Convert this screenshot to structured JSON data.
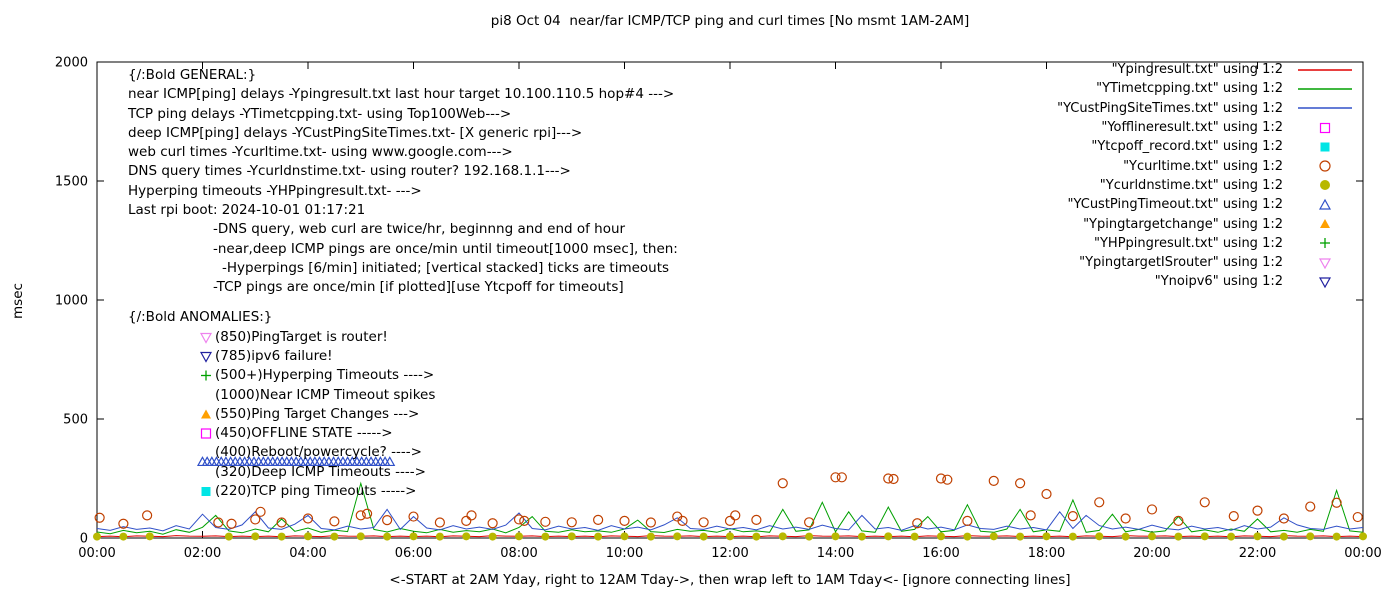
{
  "title": "pi8 Oct 04  near/far ICMP/TCP ping and curl times [No msmt 1AM-2AM]",
  "axes": {
    "ylabel": "msec",
    "xlabel": "<-START at 2AM Yday, right to 12AM Tday->, then wrap left to 1AM Tday<- [ignore connecting lines]",
    "y_ticks": [
      "0",
      "500",
      "1000",
      "1500",
      "2000"
    ],
    "x_ticks": [
      "00:00",
      "02:00",
      "04:00",
      "06:00",
      "08:00",
      "10:00",
      "12:00",
      "14:00",
      "16:00",
      "18:00",
      "20:00",
      "22:00",
      "00:00"
    ]
  },
  "chart_data": {
    "type": "line",
    "x_unit": "hours",
    "xlim": [
      0,
      24
    ],
    "ylim": [
      0,
      2000
    ],
    "x_tick_values": [
      0,
      2,
      4,
      6,
      8,
      10,
      12,
      14,
      16,
      18,
      20,
      22,
      24
    ],
    "y_tick_values": [
      0,
      500,
      1000,
      1500,
      2000
    ],
    "grid": false,
    "legend_position": "top-right-inside",
    "series": [
      {
        "name": "near-icmp-ping-delay",
        "file": "Ypingresult.txt",
        "type": "line",
        "color": "#e10000",
        "x_start": 0,
        "x_step": 0.25,
        "values": [
          6,
          8,
          5,
          9,
          7,
          6,
          10,
          8,
          7,
          9,
          6,
          8,
          6,
          8,
          5,
          9,
          7,
          6,
          10,
          8,
          7,
          9,
          6,
          8,
          6,
          8,
          5,
          9,
          7,
          6,
          10,
          8,
          7,
          9,
          6,
          8,
          6,
          8,
          5,
          9,
          7,
          6,
          10,
          8,
          7,
          9,
          6,
          8,
          6,
          8,
          5,
          9,
          7,
          6,
          10,
          8,
          7,
          9,
          6,
          8,
          6,
          8,
          5,
          9,
          7,
          6,
          10,
          8,
          7,
          9,
          6,
          8,
          6,
          8,
          5,
          9,
          7,
          6,
          10,
          8,
          7,
          9,
          6,
          8,
          6,
          8,
          5,
          9,
          7,
          6,
          10,
          8,
          7,
          9,
          6,
          8,
          6
        ]
      },
      {
        "name": "tcp-ping-delay",
        "file": "YTimetcpping.txt",
        "type": "line",
        "color": "#00a000",
        "x_start": 0,
        "x_step": 0.25,
        "values": [
          25,
          18,
          32,
          22,
          28,
          16,
          35,
          24,
          45,
          95,
          30,
          22,
          38,
          26,
          80,
          28,
          42,
          24,
          33,
          27,
          230,
          36,
          25,
          40,
          28,
          22,
          36,
          24,
          31,
          26,
          38,
          22,
          44,
          90,
          28,
          24,
          35,
          26,
          30,
          24,
          38,
          75,
          27,
          23,
          36,
          28,
          32,
          24,
          40,
          26,
          30,
          24,
          120,
          28,
          34,
          150,
          26,
          110,
          30,
          24,
          130,
          28,
          36,
          90,
          26,
          32,
          140,
          28,
          24,
          38,
          120,
          26,
          34,
          28,
          160,
          24,
          32,
          100,
          26,
          36,
          24,
          30,
          90,
          26,
          34,
          24,
          38,
          28,
          80,
          26,
          32,
          24,
          36,
          28,
          200,
          30,
          24
        ]
      },
      {
        "name": "deep-icmp-ping-delay",
        "file": "YCustPingSiteTimes.txt",
        "type": "line",
        "color": "#3050c8",
        "x_start": 0,
        "x_step": 0.25,
        "values": [
          40,
          32,
          48,
          36,
          42,
          30,
          52,
          38,
          100,
          44,
          36,
          55,
          110,
          42,
          36,
          58,
          95,
          40,
          34,
          50,
          38,
          44,
          120,
          36,
          90,
          42,
          34,
          52,
          38,
          46,
          36,
          54,
          105,
          40,
          34,
          50,
          38,
          44,
          32,
          52,
          38,
          46,
          34,
          55,
          85,
          40,
          36,
          50,
          38,
          44,
          34,
          52,
          38,
          46,
          36,
          54,
          40,
          34,
          95,
          38,
          44,
          32,
          52,
          38,
          46,
          34,
          55,
          40,
          36,
          50,
          38,
          44,
          34,
          110,
          40,
          95,
          52,
          38,
          46,
          36,
          54,
          40,
          34,
          50,
          38,
          44,
          32,
          52,
          38,
          46,
          85,
          55,
          40,
          36,
          50,
          38,
          44
        ]
      },
      {
        "name": "web-curl-times",
        "file": "Ycurltime.txt",
        "type": "points",
        "marker": "circle-open",
        "color": "#c04000",
        "size": 4.5,
        "points": [
          [
            0.05,
            85
          ],
          [
            0.5,
            60
          ],
          [
            0.95,
            95
          ],
          [
            2.3,
            65
          ],
          [
            2.55,
            60
          ],
          [
            3.0,
            78
          ],
          [
            3.1,
            110
          ],
          [
            3.5,
            65
          ],
          [
            4.0,
            82
          ],
          [
            4.5,
            70
          ],
          [
            5.0,
            95
          ],
          [
            5.12,
            102
          ],
          [
            5.5,
            75
          ],
          [
            6.0,
            90
          ],
          [
            6.5,
            65
          ],
          [
            7.0,
            72
          ],
          [
            7.1,
            95
          ],
          [
            7.5,
            62
          ],
          [
            8.0,
            78
          ],
          [
            8.1,
            72
          ],
          [
            8.5,
            68
          ],
          [
            9.0,
            66
          ],
          [
            9.5,
            76
          ],
          [
            10.0,
            72
          ],
          [
            10.5,
            65
          ],
          [
            11.0,
            90
          ],
          [
            11.1,
            72
          ],
          [
            11.5,
            66
          ],
          [
            12.0,
            72
          ],
          [
            12.1,
            95
          ],
          [
            12.5,
            76
          ],
          [
            13.0,
            230
          ],
          [
            13.5,
            66
          ],
          [
            14.0,
            255
          ],
          [
            14.12,
            255
          ],
          [
            15.0,
            250
          ],
          [
            15.1,
            248
          ],
          [
            15.55,
            62
          ],
          [
            16.0,
            250
          ],
          [
            16.12,
            245
          ],
          [
            16.5,
            72
          ],
          [
            17.0,
            240
          ],
          [
            17.5,
            230
          ],
          [
            17.7,
            95
          ],
          [
            18.0,
            185
          ],
          [
            18.5,
            92
          ],
          [
            19.0,
            150
          ],
          [
            19.5,
            82
          ],
          [
            20.0,
            120
          ],
          [
            20.5,
            72
          ],
          [
            21.0,
            150
          ],
          [
            21.55,
            92
          ],
          [
            22.0,
            115
          ],
          [
            22.5,
            82
          ],
          [
            23.0,
            132
          ],
          [
            23.5,
            148
          ],
          [
            23.9,
            88
          ]
        ]
      },
      {
        "name": "dns-query-times",
        "file": "Ycurldnstime.txt",
        "type": "points",
        "marker": "circle-filled",
        "color": "#b8b800",
        "size": 4,
        "points": [
          [
            0,
            6
          ],
          [
            0.5,
            6
          ],
          [
            1,
            7
          ],
          [
            2.5,
            6
          ],
          [
            3,
            7
          ],
          [
            3.5,
            6
          ],
          [
            4,
            7
          ],
          [
            4.5,
            6
          ],
          [
            5,
            7
          ],
          [
            5.5,
            6
          ],
          [
            6,
            7
          ],
          [
            6.5,
            6
          ],
          [
            7,
            7
          ],
          [
            7.5,
            6
          ],
          [
            8,
            7
          ],
          [
            8.5,
            6
          ],
          [
            9,
            7
          ],
          [
            9.5,
            6
          ],
          [
            10,
            7
          ],
          [
            10.5,
            6
          ],
          [
            11,
            7
          ],
          [
            11.5,
            6
          ],
          [
            12,
            7
          ],
          [
            12.5,
            6
          ],
          [
            13,
            7
          ],
          [
            13.5,
            6
          ],
          [
            14,
            7
          ],
          [
            14.5,
            6
          ],
          [
            15,
            7
          ],
          [
            15.5,
            6
          ],
          [
            16,
            7
          ],
          [
            16.5,
            6
          ],
          [
            17,
            7
          ],
          [
            17.5,
            6
          ],
          [
            18,
            7
          ],
          [
            18.5,
            6
          ],
          [
            19,
            7
          ],
          [
            19.5,
            6
          ],
          [
            20,
            7
          ],
          [
            20.5,
            6
          ],
          [
            21,
            7
          ],
          [
            21.5,
            6
          ],
          [
            22,
            7
          ],
          [
            22.5,
            6
          ],
          [
            23,
            7
          ],
          [
            23.5,
            6
          ],
          [
            24,
            7
          ]
        ]
      },
      {
        "name": "deep-icmp-timeouts-run",
        "file": "YCustPingTimeout.txt",
        "type": "marker-run",
        "marker": "triangle-up-open",
        "color": "#3050c8",
        "size": 4.5,
        "y": 320,
        "x_start": 2.0,
        "x_end": 5.55,
        "count": 41
      }
    ]
  },
  "legend": {
    "entries": [
      {
        "label": "\"Ypingresult.txt\" using 1:2",
        "marker": "line",
        "color": "#e10000"
      },
      {
        "label": "\"YTimetcpping.txt\" using 1:2",
        "marker": "line",
        "color": "#00a000"
      },
      {
        "label": "\"YCustPingSiteTimes.txt\" using 1:2",
        "marker": "line",
        "color": "#3050c8"
      },
      {
        "label": "\"Yofflineresult.txt\" using 1:2",
        "marker": "square-open",
        "color": "#ff00ff"
      },
      {
        "label": "\"Ytcpoff_record.txt\" using 1:2",
        "marker": "square-filled",
        "color": "#00e5e5"
      },
      {
        "label": "\"Ycurltime.txt\" using 1:2",
        "marker": "circle-open",
        "color": "#c04000"
      },
      {
        "label": "\"Ycurldnstime.txt\" using 1:2",
        "marker": "circle-filled",
        "color": "#b8b800"
      },
      {
        "label": "\"YCustPingTimeout.txt\" using 1:2",
        "marker": "triangle-up-open",
        "color": "#3050c8"
      },
      {
        "label": "\"Ypingtargetchange\" using 1:2",
        "marker": "triangle-up-filled",
        "color": "#ffa000"
      },
      {
        "label": "\"YHPpingresult.txt\" using 1:2",
        "marker": "plus",
        "color": "#00a000"
      },
      {
        "label": "\"YpingtargetISrouter\" using 1:2",
        "marker": "triangle-down-open",
        "color": "#ee82ee"
      },
      {
        "label": "\"Ynoipv6\" using 1:2",
        "marker": "triangle-down-open",
        "color": "#2020a0"
      }
    ]
  },
  "general_block": {
    "lines": [
      {
        "text": "{/:Bold GENERAL:}",
        "indent": 0
      },
      {
        "text": "near ICMP[ping] delays -Ypingresult.txt last hour target 10.100.110.5 hop#4 --->",
        "indent": 0
      },
      {
        "text": "TCP ping delays -YTimetcpping.txt- using Top100Web--->",
        "indent": 0
      },
      {
        "text": "deep ICMP[ping] delays -YCustPingSiteTimes.txt- [X generic rpi]--->",
        "indent": 0
      },
      {
        "text": "web curl times -Ycurltime.txt- using www.google.com--->",
        "indent": 0
      },
      {
        "text": "DNS query times -Ycurldnstime.txt- using router? 192.168.1.1--->",
        "indent": 0
      },
      {
        "text": "Hyperping timeouts -YHPpingresult.txt- --->",
        "indent": 0
      },
      {
        "text": "Last rpi boot: 2024-10-01 01:17:21",
        "indent": 0
      },
      {
        "text": "-DNS query, web curl are twice/hr, beginnng and end of hour",
        "indent": 1
      },
      {
        "text": "-near,deep ICMP pings are once/min until timeout[1000 msec], then:",
        "indent": 1
      },
      {
        "text": "-Hyperpings [6/min] initiated; [vertical stacked] ticks are timeouts",
        "indent": 2
      },
      {
        "text": "-TCP pings are once/min [if plotted][use Ytcpoff for timeouts]",
        "indent": 1
      }
    ]
  },
  "anomalies_block": {
    "header": "{/:Bold ANOMALIES:}",
    "items": [
      {
        "marker": "triangle-down-open",
        "color": "#ee82ee",
        "text": "(850)PingTarget is router!"
      },
      {
        "marker": "triangle-down-open",
        "color": "#2020a0",
        "text": "(785)ipv6 failure!"
      },
      {
        "marker": "plus",
        "color": "#00a000",
        "text": "(500+)Hyperping Timeouts ---->"
      },
      {
        "marker": "none",
        "color": "",
        "text": "(1000)Near ICMP Timeout spikes"
      },
      {
        "marker": "triangle-up-filled",
        "color": "#ffa000",
        "text": "(550)Ping Target Changes --->"
      },
      {
        "marker": "square-open",
        "color": "#ff00ff",
        "text": "(450)OFFLINE STATE ----->"
      },
      {
        "marker": "none",
        "color": "",
        "text": "(400)Reboot/powercycle? ---->"
      },
      {
        "marker": "none",
        "color": "",
        "text": "(320)Deep ICMP Timeouts ---->"
      },
      {
        "marker": "square-filled",
        "color": "#00e5e5",
        "text": "(220)TCP ping Timeouts ----->"
      }
    ]
  }
}
